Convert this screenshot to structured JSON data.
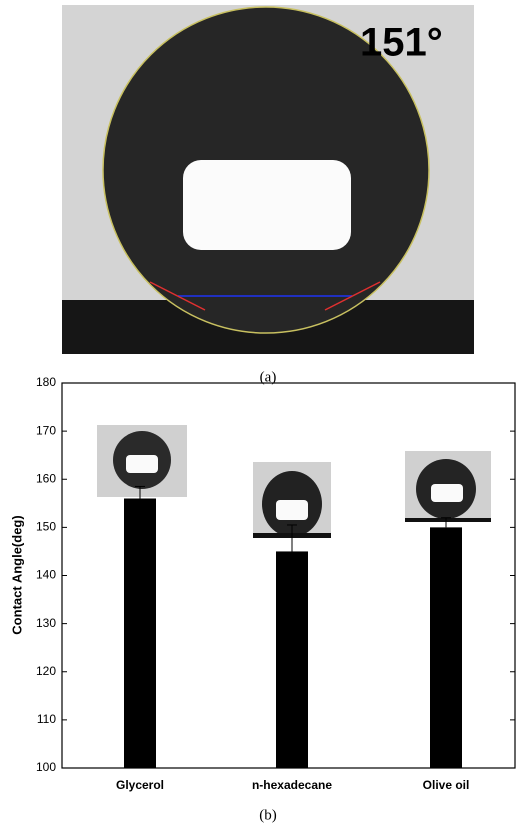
{
  "panel_a": {
    "annotation": "151°",
    "caption": "(a)"
  },
  "chart_data": {
    "type": "bar",
    "caption": "(b)",
    "y_label": "Contact Angle(deg)",
    "categories": [
      "Glycerol",
      "n-hexadecane",
      "Olive oil"
    ],
    "values": [
      156,
      145,
      150
    ],
    "errors": [
      2.5,
      5.5,
      2
    ],
    "color": "#000000",
    "ylim": [
      100,
      180
    ],
    "yticks": [
      100,
      110,
      120,
      130,
      140,
      150,
      160,
      170,
      180
    ]
  }
}
